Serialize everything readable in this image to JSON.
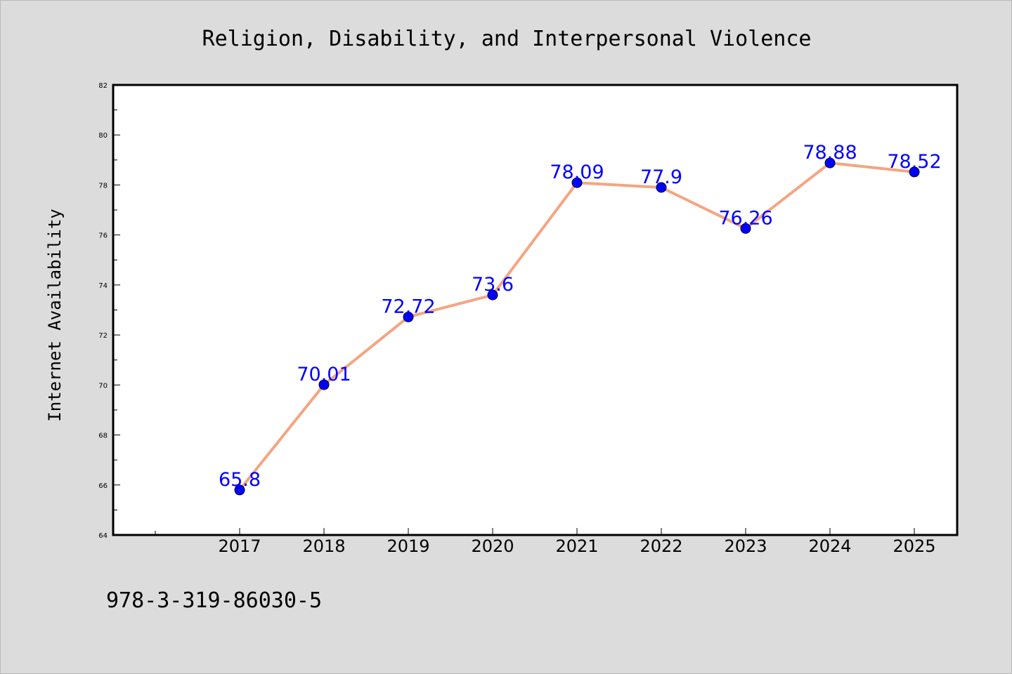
{
  "chart_data": {
    "type": "line",
    "title": "Religion, Disability, and Interpersonal Violence",
    "xlabel": "",
    "ylabel": "Internet Availability",
    "categories": [
      "2017",
      "2018",
      "2019",
      "2020",
      "2021",
      "2022",
      "2023",
      "2024",
      "2025"
    ],
    "series": [
      {
        "values": [
          65.8,
          70.01,
          72.72,
          73.6,
          78.09,
          77.9,
          76.26,
          78.88,
          78.52
        ],
        "line_color": "#f4a582",
        "marker_color": "#0000ff"
      }
    ],
    "data_labels": [
      "65.8",
      "70.01",
      "72.72",
      "73.6",
      "78.09",
      "77.9",
      "76.26",
      "78.88",
      "78.52"
    ],
    "ylim": [
      64,
      82
    ],
    "yticks": [
      "64",
      "66",
      "68",
      "70",
      "72",
      "74",
      "76",
      "78",
      "80",
      "82"
    ],
    "grid": false,
    "legend": "none",
    "label_color": "#0000ff"
  },
  "footer": {
    "isbn": "978-3-319-86030-5"
  }
}
